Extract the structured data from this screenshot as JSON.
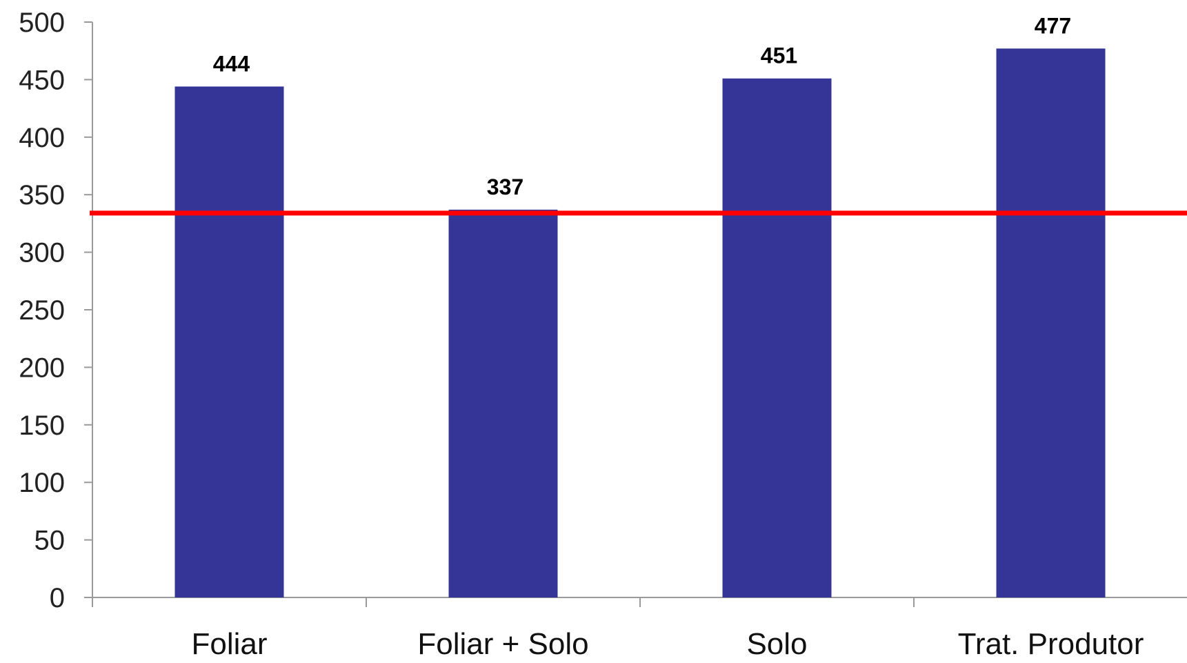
{
  "chart_data": {
    "type": "bar",
    "categories": [
      "Foliar",
      "Foliar + Solo",
      "Solo",
      "Trat. Produtor"
    ],
    "values": [
      444,
      337,
      451,
      477
    ],
    "data_labels": [
      "444",
      "337",
      "451",
      "477"
    ],
    "y_ticks": [
      0,
      50,
      100,
      150,
      200,
      250,
      300,
      350,
      400,
      450,
      500
    ],
    "ylim": [
      0,
      500
    ],
    "reference_line": 334,
    "grid": false,
    "legend": "none"
  },
  "colors": {
    "bar": "#353597",
    "reference_line": "#ff0000",
    "axis": "#9a9a9a"
  }
}
